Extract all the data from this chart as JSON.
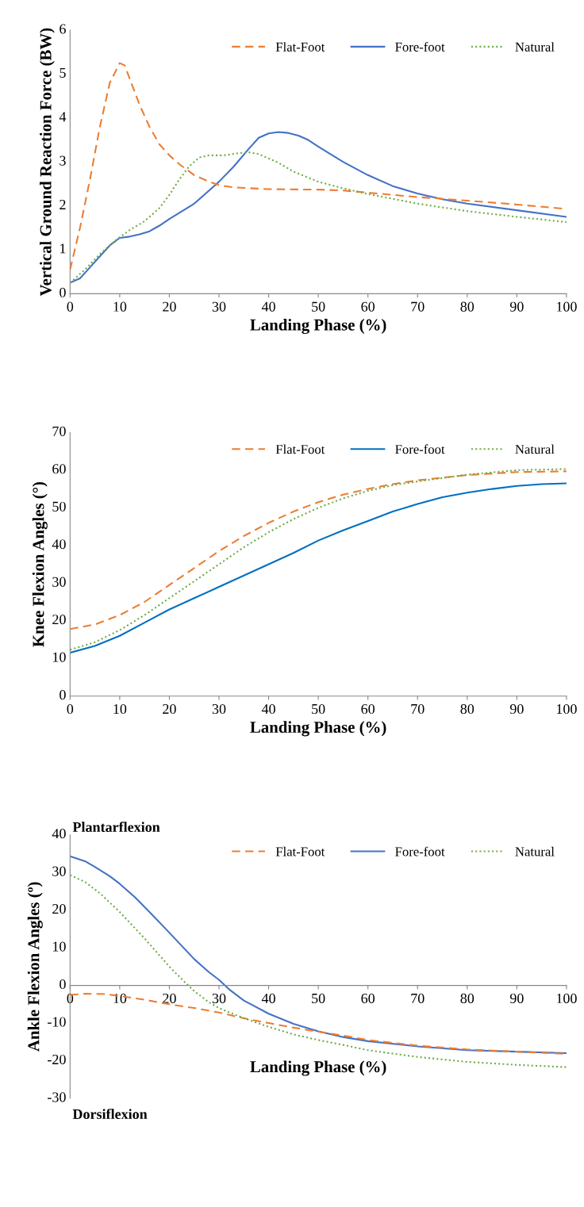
{
  "chart_data": [
    {
      "type": "line",
      "xlabel": "Landing Phase (%)",
      "ylabel": "Vertical Ground Reaction Force (BW)",
      "xlim": [
        0,
        100
      ],
      "ylim": [
        0,
        6
      ],
      "xticks": [
        0,
        10,
        20,
        30,
        40,
        50,
        60,
        70,
        80,
        90,
        100
      ],
      "yticks": [
        0,
        1,
        2,
        3,
        4,
        5,
        6
      ],
      "legend": "top right",
      "grid": false,
      "series": [
        {
          "name": "Flat-Foot",
          "color": "#ed7d31",
          "line_style": "dashed",
          "x": [
            0,
            2,
            4,
            6,
            8,
            10,
            11,
            12,
            14,
            16,
            18,
            20,
            22,
            25,
            28,
            30,
            33,
            40,
            50,
            55,
            60,
            70,
            80,
            90,
            100
          ],
          "values": [
            0.55,
            1.5,
            2.6,
            3.8,
            4.8,
            5.25,
            5.2,
            4.9,
            4.3,
            3.8,
            3.4,
            3.15,
            2.95,
            2.7,
            2.55,
            2.47,
            2.42,
            2.38,
            2.37,
            2.35,
            2.3,
            2.2,
            2.12,
            2.03,
            1.93
          ]
        },
        {
          "name": "Fore-foot",
          "color": "#4472c4",
          "line_style": "solid",
          "x": [
            0,
            2,
            4,
            6,
            8,
            10,
            12,
            14,
            16,
            18,
            20,
            25,
            28,
            30,
            33,
            36,
            38,
            40,
            42,
            44,
            46,
            48,
            50,
            55,
            60,
            65,
            70,
            75,
            80,
            90,
            100
          ],
          "values": [
            0.25,
            0.35,
            0.6,
            0.85,
            1.1,
            1.27,
            1.3,
            1.35,
            1.42,
            1.55,
            1.7,
            2.05,
            2.35,
            2.55,
            2.9,
            3.3,
            3.55,
            3.65,
            3.68,
            3.66,
            3.6,
            3.5,
            3.35,
            3.0,
            2.7,
            2.45,
            2.28,
            2.15,
            2.05,
            1.9,
            1.75
          ]
        },
        {
          "name": "Natural",
          "color": "#70ad47",
          "line_style": "dotted",
          "x": [
            0,
            3,
            6,
            9,
            12,
            15,
            18,
            20,
            22,
            24,
            26,
            28,
            31,
            34,
            36,
            38,
            40,
            42,
            45,
            50,
            55,
            60,
            70,
            80,
            90,
            100
          ],
          "values": [
            0.25,
            0.55,
            0.9,
            1.2,
            1.45,
            1.65,
            1.95,
            2.25,
            2.6,
            2.9,
            3.1,
            3.15,
            3.15,
            3.2,
            3.22,
            3.18,
            3.08,
            2.98,
            2.78,
            2.55,
            2.4,
            2.27,
            2.05,
            1.88,
            1.75,
            1.63
          ]
        }
      ]
    },
    {
      "type": "line",
      "xlabel": "Landing Phase (%)",
      "ylabel": "Knee Flexion Angles (°)",
      "xlim": [
        0,
        100
      ],
      "ylim": [
        0,
        70
      ],
      "xticks": [
        0,
        10,
        20,
        30,
        40,
        50,
        60,
        70,
        80,
        90,
        100
      ],
      "yticks": [
        0,
        10,
        20,
        30,
        40,
        50,
        60,
        70
      ],
      "legend": "top right",
      "grid": false,
      "series": [
        {
          "name": "Flat-Foot",
          "color": "#ed7d31",
          "line_style": "dashed",
          "x": [
            0,
            5,
            10,
            15,
            20,
            25,
            30,
            35,
            40,
            45,
            50,
            55,
            60,
            65,
            70,
            80,
            90,
            100
          ],
          "values": [
            17.8,
            19,
            21.5,
            25,
            29.5,
            34,
            38.5,
            42.5,
            46,
            49,
            51.5,
            53.5,
            55,
            56.3,
            57.3,
            58.7,
            59.5,
            59.7
          ]
        },
        {
          "name": "Fore-foot",
          "color": "#0070c0",
          "line_style": "solid",
          "x": [
            0,
            5,
            10,
            15,
            20,
            25,
            30,
            35,
            40,
            45,
            50,
            55,
            60,
            65,
            70,
            75,
            80,
            85,
            90,
            95,
            100
          ],
          "values": [
            11.5,
            13.3,
            16,
            19.5,
            23,
            26,
            29,
            32,
            35,
            38,
            41.3,
            44,
            46.5,
            49,
            51,
            52.8,
            54,
            55,
            55.8,
            56.3,
            56.5
          ]
        },
        {
          "name": "Natural",
          "color": "#70ad47",
          "line_style": "dotted",
          "x": [
            0,
            5,
            10,
            15,
            20,
            25,
            30,
            35,
            40,
            45,
            50,
            55,
            60,
            65,
            70,
            80,
            90,
            100
          ],
          "values": [
            12.3,
            14.3,
            17.5,
            21.5,
            26,
            30.5,
            35,
            39.5,
            43.5,
            47,
            50,
            52.5,
            54.5,
            56,
            57,
            58.8,
            60,
            60.3
          ]
        }
      ]
    },
    {
      "type": "line",
      "xlabel": "Landing Phase (%)",
      "ylabel": "Ankle Flexion Angles (º)",
      "xlim": [
        0,
        100
      ],
      "ylim": [
        -30,
        40
      ],
      "xticks": [
        0,
        10,
        20,
        30,
        40,
        50,
        60,
        70,
        80,
        90,
        100
      ],
      "yticks": [
        -30,
        -20,
        -10,
        0,
        10,
        20,
        30,
        40
      ],
      "legend": "top right",
      "grid": false,
      "annotations": [
        "Plantarflexion",
        "Dorsiflexion"
      ],
      "series": [
        {
          "name": "Flat-Foot",
          "color": "#ed7d31",
          "line_style": "dashed",
          "x": [
            0,
            3,
            7,
            10,
            15,
            20,
            25,
            30,
            35,
            40,
            45,
            50,
            55,
            60,
            70,
            80,
            90,
            100
          ],
          "values": [
            -2.5,
            -2.2,
            -2.3,
            -2.8,
            -3.8,
            -5,
            -6,
            -7.2,
            -8.7,
            -10,
            -11.2,
            -12.3,
            -13.3,
            -14.5,
            -16,
            -17,
            -17.6,
            -18.2
          ]
        },
        {
          "name": "Fore-foot",
          "color": "#4472c4",
          "line_style": "solid",
          "x": [
            0,
            3,
            5,
            8,
            10,
            13,
            16,
            20,
            25,
            28,
            30,
            32,
            35,
            40,
            45,
            50,
            55,
            60,
            70,
            80,
            90,
            100
          ],
          "values": [
            34.3,
            33,
            31.5,
            29,
            27,
            23.5,
            19.5,
            14,
            7,
            3.5,
            1.5,
            -1,
            -4,
            -7.5,
            -10.2,
            -12.2,
            -13.7,
            -14.8,
            -16.2,
            -17.2,
            -17.6,
            -18
          ]
        },
        {
          "name": "Natural",
          "color": "#70ad47",
          "line_style": "dotted",
          "x": [
            0,
            3,
            6,
            10,
            15,
            20,
            23,
            25,
            28,
            30,
            35,
            40,
            45,
            50,
            55,
            60,
            70,
            80,
            90,
            100
          ],
          "values": [
            29.3,
            27.5,
            24.5,
            19.5,
            12.5,
            5,
            1,
            -1.5,
            -4.5,
            -6,
            -8.7,
            -11,
            -13,
            -14.5,
            -15.8,
            -17.2,
            -19,
            -20.3,
            -21.1,
            -21.7
          ]
        }
      ]
    }
  ]
}
